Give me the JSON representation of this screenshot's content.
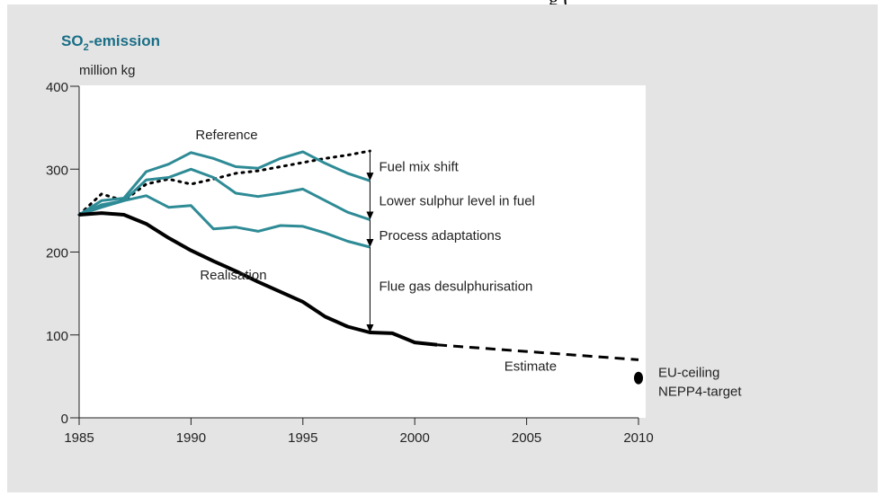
{
  "caption_fragment": "g (",
  "chart_data": {
    "type": "line",
    "title_main": "SO",
    "title_sub": "2",
    "title_rest": "-emission",
    "ylabel": "million kg",
    "xlabel": "",
    "xlim": [
      1985,
      2010
    ],
    "ylim": [
      0,
      400
    ],
    "x_ticks": [
      1985,
      1990,
      1995,
      2000,
      2005,
      2010
    ],
    "y_ticks": [
      0,
      100,
      200,
      300,
      400
    ],
    "grid": false,
    "colors": {
      "teal": "#2e8b96",
      "black": "#000000",
      "plot_bg": "#ffffff",
      "panel_bg": "#e4e4e4",
      "title": "#1a6e86"
    },
    "series": [
      {
        "style": "dotted",
        "x": [
          1985,
          1986,
          1987,
          1988,
          1989,
          1990,
          1991,
          1992,
          1993,
          1994,
          1995,
          1996,
          1997,
          1998
        ],
        "y": [
          245,
          270,
          262,
          282,
          288,
          282,
          288,
          295,
          298,
          303,
          308,
          313,
          317,
          322
        ]
      },
      {
        "style": "teal",
        "x": [
          1985,
          1986,
          1987,
          1988,
          1989,
          1990,
          1991,
          1992,
          1993,
          1994,
          1995,
          1996,
          1997,
          1998
        ],
        "y": [
          245,
          262,
          265,
          297,
          306,
          320,
          313,
          303,
          301,
          313,
          321,
          307,
          295,
          286
        ]
      },
      {
        "style": "teal",
        "x": [
          1985,
          1986,
          1987,
          1988,
          1989,
          1990,
          1991,
          1992,
          1993,
          1994,
          1995,
          1996,
          1997,
          1998
        ],
        "y": [
          245,
          257,
          262,
          287,
          290,
          300,
          290,
          271,
          267,
          271,
          276,
          262,
          248,
          239
        ]
      },
      {
        "style": "teal",
        "x": [
          1985,
          1986,
          1987,
          1988,
          1989,
          1990,
          1991,
          1992,
          1993,
          1994,
          1995,
          1996,
          1997,
          1998
        ],
        "y": [
          245,
          254,
          262,
          268,
          254,
          256,
          228,
          230,
          225,
          232,
          231,
          223,
          213,
          206
        ]
      },
      {
        "style": "black",
        "x": [
          1985,
          1986,
          1987,
          1988,
          1989,
          1990,
          1991,
          1992,
          1993,
          1994,
          1995,
          1996,
          1997,
          1998,
          1999,
          2000,
          2001
        ],
        "y": [
          245,
          247,
          245,
          234,
          217,
          202,
          189,
          177,
          164,
          152,
          140,
          122,
          110,
          103,
          102,
          91,
          88
        ]
      },
      {
        "style": "dashed",
        "x": [
          2001,
          2010
        ],
        "y": [
          88,
          70
        ]
      }
    ],
    "point": {
      "x": 2010,
      "y": 48,
      "labels": [
        "EU-ceiling",
        "NEPP4-target"
      ]
    },
    "annotations": [
      {
        "text": "Reference",
        "x": 1990.2,
        "y": 336
      },
      {
        "text": "Realisation",
        "x": 1990.4,
        "y": 167
      },
      {
        "text": "Estimate",
        "x": 2004.0,
        "y": 57
      }
    ],
    "arrows": [
      {
        "x": 1998,
        "from": 322,
        "to": 286,
        "text": "Fuel mix shift",
        "label_y": 303
      },
      {
        "x": 1998,
        "from": 286,
        "to": 239,
        "text": "Lower sulphur level in fuel",
        "label_y": 262
      },
      {
        "x": 1998,
        "from": 239,
        "to": 206,
        "text": "Process adaptations",
        "label_y": 220
      },
      {
        "x": 1998,
        "from": 206,
        "to": 103,
        "text": "Flue gas desulphurisation",
        "label_y": 159
      }
    ]
  }
}
